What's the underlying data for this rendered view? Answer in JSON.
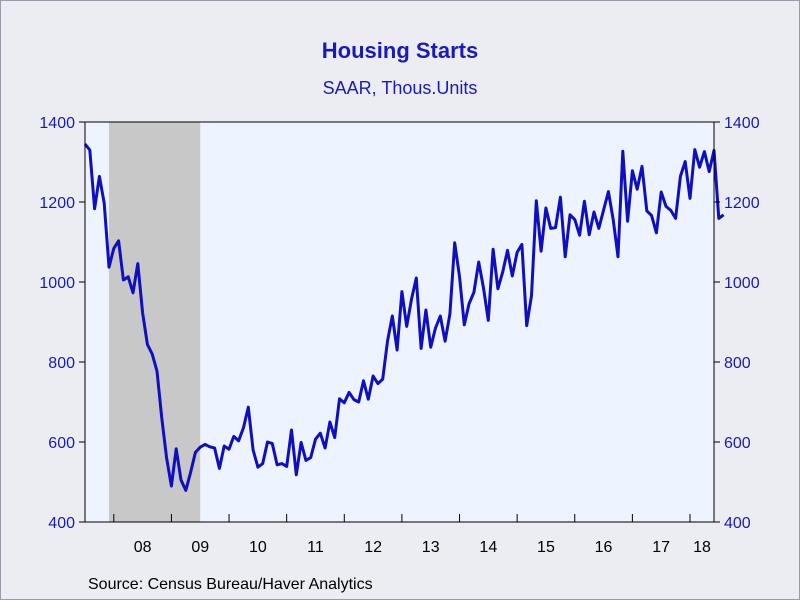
{
  "chart_data": {
    "type": "line",
    "title": "Housing Starts",
    "subtitle": "SAAR, Thous.Units",
    "source": "Source:  Census Bureau/Haver Analytics",
    "ylim": [
      400,
      1400
    ],
    "y_ticks": [
      "400",
      "600",
      "800",
      "1000",
      "1200",
      "1400"
    ],
    "y_axis_sides": [
      "left",
      "right"
    ],
    "x_range": [
      "2007-07",
      "2018-05"
    ],
    "x_ticks": [
      {
        "label": "08",
        "year": 2008
      },
      {
        "label": "09",
        "year": 2009
      },
      {
        "label": "10",
        "year": 2010
      },
      {
        "label": "11",
        "year": 2011
      },
      {
        "label": "12",
        "year": 2012
      },
      {
        "label": "13",
        "year": 2013
      },
      {
        "label": "14",
        "year": 2014
      },
      {
        "label": "15",
        "year": 2015
      },
      {
        "label": "16",
        "year": 2016
      },
      {
        "label": "17",
        "year": 2017
      },
      {
        "label": "18",
        "year": 2018
      }
    ],
    "recession_band": {
      "start": "2007-12",
      "end": "2009-06",
      "color": "#c8c8c8"
    },
    "grid": false,
    "plot_background": "#eef4ff",
    "series": [
      {
        "color": "#0f0fc0",
        "start": "2007-07",
        "frequency": "monthly",
        "values": [
          1345,
          1330,
          1183,
          1264,
          1197,
          1037,
          1084,
          1103,
          1005,
          1013,
          973,
          1046,
          923,
          844,
          820,
          777,
          659,
          560,
          490,
          583,
          505,
          479,
          524,
          574,
          587,
          594,
          588,
          585,
          534,
          590,
          582,
          614,
          603,
          636,
          687,
          580,
          537,
          546,
          600,
          596,
          543,
          546,
          539,
          630,
          518,
          599,
          554,
          561,
          607,
          622,
          585,
          650,
          611,
          708,
          698,
          724,
          706,
          700,
          753,
          707,
          765,
          746,
          757,
          852,
          915,
          830,
          976,
          889,
          957,
          1010,
          834,
          930,
          837,
          885,
          915,
          852,
          920,
          1098,
          1014,
          893,
          946,
          974,
          1050,
          985,
          904,
          1082,
          983,
          1025,
          1079,
          1015,
          1074,
          1094,
          891,
          966,
          1203,
          1077,
          1185,
          1134,
          1136,
          1212,
          1063,
          1168,
          1156,
          1117,
          1202,
          1118,
          1175,
          1134,
          1180,
          1226,
          1156,
          1063,
          1327,
          1152,
          1278,
          1232,
          1289,
          1178,
          1166,
          1123,
          1225,
          1189,
          1179,
          1159,
          1264,
          1301,
          1209,
          1331,
          1287,
          1326,
          1276,
          1329,
          1159,
          1168
        ]
      }
    ]
  }
}
